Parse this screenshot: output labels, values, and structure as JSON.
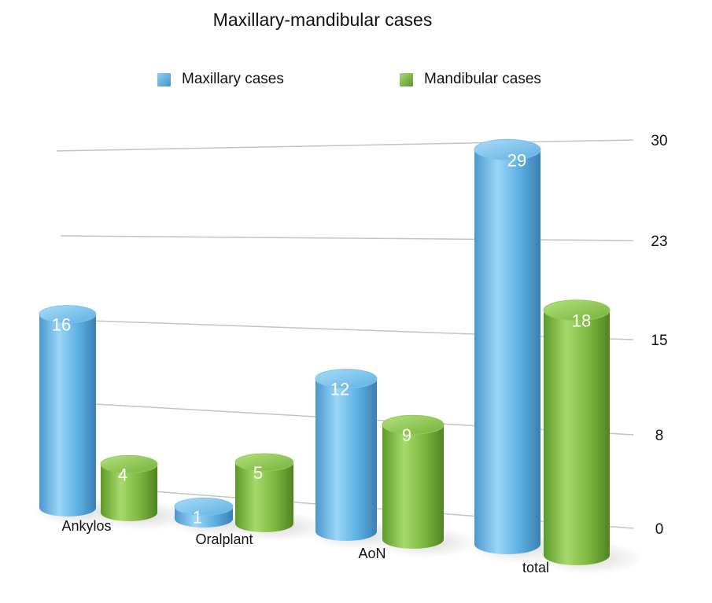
{
  "chart_data": {
    "type": "bar",
    "title": "Maxillary-mandibular cases",
    "categories": [
      "Ankylos",
      "Oralplant",
      "AoN",
      "total"
    ],
    "series": [
      {
        "name": "Maxillary cases",
        "values": [
          16,
          1,
          12,
          29
        ],
        "color": "#5aaee3"
      },
      {
        "name": "Mandibular cases",
        "values": [
          4,
          5,
          9,
          18
        ],
        "color": "#7ab53d"
      }
    ],
    "y_ticks": [
      "30",
      "23",
      "15",
      "8",
      "0"
    ],
    "ylim": [
      0,
      30
    ],
    "grid": true,
    "legend_position": "top",
    "style": "3d-cylinder"
  }
}
